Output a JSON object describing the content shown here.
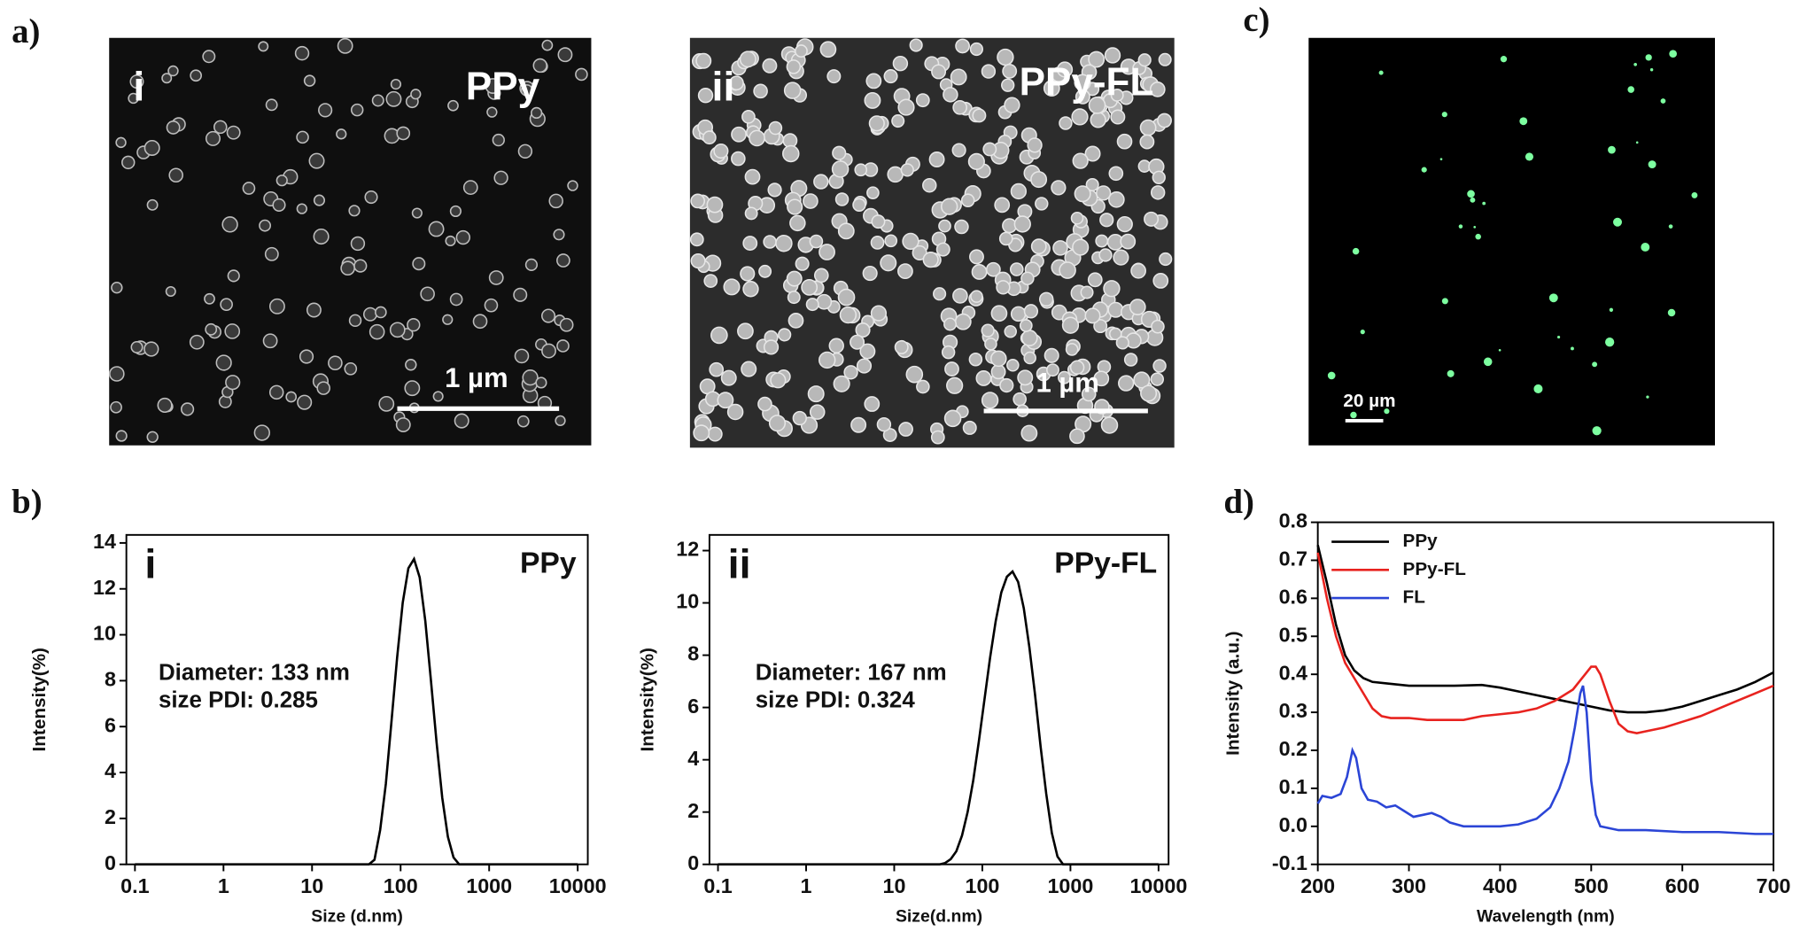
{
  "panel_labels": [
    "a)",
    "b)",
    "c)",
    "d)"
  ],
  "images": [
    {
      "label": "i",
      "sample": "PPy",
      "scale_bar": "1 µm"
    },
    {
      "label": "ii",
      "sample": "PPy-FL",
      "scale_bar": "1 µm"
    },
    {
      "scale_bar": "20 µm"
    }
  ],
  "chart_data": [
    {
      "type": "line",
      "panel": "i",
      "title": "PPy",
      "annotations": [
        "Diameter: 133 nm",
        "size PDI: 0.285"
      ],
      "xlabel": "Size (d.nm)",
      "ylabel": "Intensity(%)",
      "xscale": "log",
      "color": "#000000",
      "x": [
        0.1,
        43.8,
        50.7,
        58.8,
        68.1,
        78.8,
        91.3,
        105.7,
        122.4,
        141.8,
        164.2,
        190.1,
        220.2,
        255.0,
        295.3,
        342.0,
        396.1,
        458.7,
        531.2,
        10000
      ],
      "values": [
        0,
        0,
        0.2,
        1.5,
        3.5,
        6.2,
        9.0,
        11.4,
        12.9,
        13.3,
        12.5,
        10.6,
        8.0,
        5.3,
        2.9,
        1.2,
        0.3,
        0,
        0,
        0
      ],
      "xlim": [
        0.08,
        13000
      ],
      "ylim": [
        0,
        14.35
      ],
      "xticks": [
        0.1,
        1,
        10,
        100,
        1000,
        10000
      ],
      "yticks": [
        0,
        2,
        4,
        6,
        8,
        10,
        12,
        14
      ]
    },
    {
      "type": "line",
      "panel": "ii",
      "title": "PPy-FL",
      "annotations": [
        "Diameter: 167 nm",
        "size PDI: 0.324"
      ],
      "xlabel": "Size(d.nm)",
      "ylabel": "Intensity(%)",
      "xscale": "log",
      "color": "#000000",
      "x": [
        0.1,
        32.7,
        37.8,
        43.8,
        50.7,
        58.8,
        68.1,
        78.8,
        91.3,
        105.7,
        122.4,
        141.8,
        164.2,
        190.1,
        220.2,
        255.0,
        295.3,
        342.0,
        396.1,
        458.7,
        531.2,
        615.1,
        712.4,
        825,
        10000
      ],
      "values": [
        0,
        0,
        0.05,
        0.2,
        0.5,
        1.1,
        2.0,
        3.2,
        4.7,
        6.3,
        7.9,
        9.3,
        10.4,
        11.0,
        11.2,
        10.8,
        9.8,
        8.3,
        6.5,
        4.5,
        2.7,
        1.2,
        0.3,
        0,
        0
      ],
      "xlim": [
        0.08,
        13000
      ],
      "ylim": [
        0,
        12.6
      ],
      "xticks": [
        0.1,
        1,
        10,
        100,
        1000,
        10000
      ],
      "yticks": [
        0,
        2,
        4,
        6,
        8,
        10,
        12
      ]
    },
    {
      "type": "line",
      "xlabel": "Wavelength (nm)",
      "ylabel": "Intensity (a.u.)",
      "legend": "upper left",
      "series": [
        {
          "name": "PPy",
          "color": "#000000",
          "x": [
            200,
            210,
            220,
            230,
            240,
            250,
            260,
            280,
            300,
            350,
            380,
            400,
            420,
            440,
            460,
            480,
            500,
            520,
            540,
            560,
            580,
            600,
            620,
            640,
            660,
            680,
            700
          ],
          "values": [
            0.74,
            0.64,
            0.53,
            0.45,
            0.41,
            0.39,
            0.38,
            0.375,
            0.37,
            0.37,
            0.372,
            0.365,
            0.355,
            0.345,
            0.335,
            0.325,
            0.315,
            0.305,
            0.3,
            0.3,
            0.305,
            0.315,
            0.33,
            0.345,
            0.36,
            0.38,
            0.405
          ]
        },
        {
          "name": "PPy-FL",
          "color": "#e8231f",
          "x": [
            200,
            210,
            220,
            230,
            240,
            250,
            260,
            270,
            280,
            300,
            320,
            340,
            360,
            380,
            400,
            420,
            440,
            460,
            480,
            490,
            500,
            505,
            510,
            520,
            530,
            540,
            550,
            560,
            580,
            600,
            620,
            640,
            660,
            680,
            700
          ],
          "values": [
            0.72,
            0.6,
            0.5,
            0.43,
            0.39,
            0.35,
            0.31,
            0.29,
            0.285,
            0.285,
            0.28,
            0.28,
            0.28,
            0.29,
            0.295,
            0.3,
            0.31,
            0.33,
            0.36,
            0.39,
            0.42,
            0.42,
            0.4,
            0.33,
            0.27,
            0.25,
            0.245,
            0.25,
            0.26,
            0.275,
            0.29,
            0.31,
            0.33,
            0.35,
            0.37
          ]
        },
        {
          "name": "FL",
          "color": "#2b45d6",
          "x": [
            200,
            205,
            215,
            225,
            232,
            238,
            242,
            248,
            255,
            265,
            275,
            285,
            295,
            305,
            315,
            325,
            335,
            345,
            360,
            380,
            400,
            420,
            440,
            455,
            465,
            475,
            482,
            488,
            491,
            495,
            500,
            505,
            510,
            530,
            560,
            600,
            640,
            680,
            700
          ],
          "values": [
            0.06,
            0.08,
            0.075,
            0.085,
            0.13,
            0.2,
            0.18,
            0.1,
            0.07,
            0.065,
            0.05,
            0.055,
            0.04,
            0.025,
            0.03,
            0.035,
            0.025,
            0.01,
            0.0,
            0.0,
            0.0,
            0.005,
            0.02,
            0.05,
            0.1,
            0.17,
            0.26,
            0.35,
            0.37,
            0.3,
            0.12,
            0.03,
            0.0,
            -0.01,
            -0.01,
            -0.015,
            -0.015,
            -0.02,
            -0.02
          ]
        }
      ],
      "xlim": [
        200,
        700
      ],
      "ylim": [
        -0.1,
        0.8
      ],
      "xticks": [
        200,
        300,
        400,
        500,
        600,
        700
      ],
      "yticks": [
        -0.1,
        {
          "value": 0,
          "label": "0.0"
        },
        0.1,
        0.2,
        0.3,
        0.4,
        0.5,
        0.6,
        0.7,
        0.8
      ]
    }
  ]
}
